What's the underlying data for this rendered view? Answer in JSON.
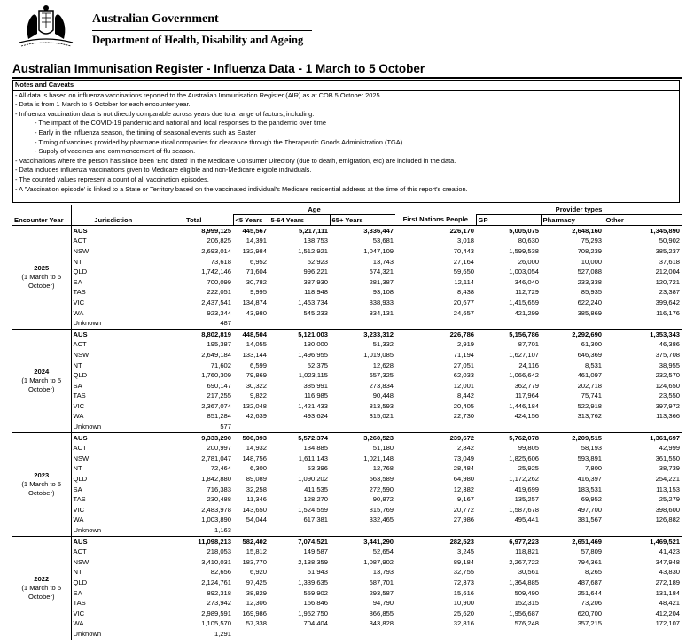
{
  "header": {
    "government": "Australian Government",
    "department": "Department of Health, Disability and Ageing"
  },
  "title": "Australian Immunisation Register - Influenza Data - 1 March to 5 October",
  "notes": {
    "heading": "Notes and Caveats",
    "items": [
      {
        "text": "- All data is based on influenza vaccinations reported to the Australian Immunisation Register (AIR) as at COB 5 October 2025.",
        "subitems": []
      },
      {
        "text": "- Data is from 1 March to 5 October for each encounter year.",
        "subitems": []
      },
      {
        "text": "- Influenza vaccination data is not directly comparable across years due to a range of factors, including:",
        "subitems": [
          "- The impact of the COVID-19 pandemic and national and local responses to the pandemic over time",
          "- Early in the influenza season, the timing of seasonal events such as Easter",
          "- Timing of vaccines provided by pharmaceutical companies for clearance through the Therapeutic Goods Administration (TGA)",
          "- Supply of vaccines and commencement of flu season."
        ]
      },
      {
        "text": "- Vaccinations where the person has since been 'End dated' in the Medicare Consumer Directory (due to death, emigration, etc) are included in the data.",
        "subitems": []
      },
      {
        "text": "- Data includes influenza vaccinations given to Medicare eligible and non-Medicare eligible individuals.",
        "subitems": []
      },
      {
        "text": "- The counted values represent a count of all vaccination episodes.",
        "subitems": []
      },
      {
        "text": "- A 'Vaccination episode' is linked to a State or Territory based on the vaccinated individual's Medicare residential address at the time of this report's creation.",
        "subitems": []
      }
    ]
  },
  "table": {
    "group_headers": {
      "age": "Age",
      "provider": "Provider types"
    },
    "columns": [
      "Encounter Year",
      "Jurisdiction",
      "Total",
      "<5 Years",
      "5-64 Years",
      "65+ Years",
      "First Nations People",
      "GP",
      "Pharmacy",
      "Other"
    ],
    "years": [
      {
        "year": "2025",
        "period": "(1 March to 5 October)",
        "rows": [
          [
            "AUS",
            "8,999,125",
            "445,567",
            "5,217,111",
            "3,336,447",
            "226,170",
            "5,005,075",
            "2,648,160",
            "1,345,890"
          ],
          [
            "ACT",
            "206,825",
            "14,391",
            "138,753",
            "53,681",
            "3,018",
            "80,630",
            "75,293",
            "50,902"
          ],
          [
            "NSW",
            "2,693,014",
            "132,984",
            "1,512,921",
            "1,047,109",
            "70,443",
            "1,599,538",
            "708,239",
            "385,237"
          ],
          [
            "NT",
            "73,618",
            "6,952",
            "52,923",
            "13,743",
            "27,164",
            "26,000",
            "10,000",
            "37,618"
          ],
          [
            "QLD",
            "1,742,146",
            "71,604",
            "996,221",
            "674,321",
            "59,650",
            "1,003,054",
            "527,088",
            "212,004"
          ],
          [
            "SA",
            "700,099",
            "30,782",
            "387,930",
            "281,387",
            "12,114",
            "346,040",
            "233,338",
            "120,721"
          ],
          [
            "TAS",
            "222,051",
            "9,995",
            "118,948",
            "93,108",
            "8,438",
            "112,729",
            "85,935",
            "23,387"
          ],
          [
            "VIC",
            "2,437,541",
            "134,874",
            "1,463,734",
            "838,933",
            "20,677",
            "1,415,659",
            "622,240",
            "399,642"
          ],
          [
            "WA",
            "923,344",
            "43,980",
            "545,233",
            "334,131",
            "24,657",
            "421,299",
            "385,869",
            "116,176"
          ],
          [
            "Unknown",
            "487"
          ]
        ]
      },
      {
        "year": "2024",
        "period": "(1 March to 5 October)",
        "rows": [
          [
            "AUS",
            "8,802,819",
            "448,504",
            "5,121,003",
            "3,233,312",
            "226,786",
            "5,156,786",
            "2,292,690",
            "1,353,343"
          ],
          [
            "ACT",
            "195,387",
            "14,055",
            "130,000",
            "51,332",
            "2,919",
            "87,701",
            "61,300",
            "46,386"
          ],
          [
            "NSW",
            "2,649,184",
            "133,144",
            "1,496,955",
            "1,019,085",
            "71,194",
            "1,627,107",
            "646,369",
            "375,708"
          ],
          [
            "NT",
            "71,602",
            "6,599",
            "52,375",
            "12,628",
            "27,051",
            "24,116",
            "8,531",
            "38,955"
          ],
          [
            "QLD",
            "1,760,309",
            "79,869",
            "1,023,115",
            "657,325",
            "62,033",
            "1,066,642",
            "461,097",
            "232,570"
          ],
          [
            "SA",
            "690,147",
            "30,322",
            "385,991",
            "273,834",
            "12,001",
            "362,779",
            "202,718",
            "124,650"
          ],
          [
            "TAS",
            "217,255",
            "9,822",
            "116,985",
            "90,448",
            "8,442",
            "117,964",
            "75,741",
            "23,550"
          ],
          [
            "VIC",
            "2,367,074",
            "132,048",
            "1,421,433",
            "813,593",
            "20,405",
            "1,446,184",
            "522,918",
            "397,972"
          ],
          [
            "WA",
            "851,284",
            "42,639",
            "493,624",
            "315,021",
            "22,730",
            "424,156",
            "313,762",
            "113,366"
          ],
          [
            "Unknown",
            "577"
          ]
        ]
      },
      {
        "year": "2023",
        "period": "(1 March to 5 October)",
        "rows": [
          [
            "AUS",
            "9,333,290",
            "500,393",
            "5,572,374",
            "3,260,523",
            "239,672",
            "5,762,078",
            "2,209,515",
            "1,361,697"
          ],
          [
            "ACT",
            "200,997",
            "14,932",
            "134,885",
            "51,180",
            "2,842",
            "99,805",
            "58,193",
            "42,999"
          ],
          [
            "NSW",
            "2,781,047",
            "148,756",
            "1,611,143",
            "1,021,148",
            "73,049",
            "1,825,606",
            "593,891",
            "361,550"
          ],
          [
            "NT",
            "72,464",
            "6,300",
            "53,396",
            "12,768",
            "28,484",
            "25,925",
            "7,800",
            "38,739"
          ],
          [
            "QLD",
            "1,842,880",
            "89,089",
            "1,090,202",
            "663,589",
            "64,980",
            "1,172,262",
            "416,397",
            "254,221"
          ],
          [
            "SA",
            "716,383",
            "32,258",
            "411,535",
            "272,590",
            "12,382",
            "419,699",
            "183,531",
            "113,153"
          ],
          [
            "TAS",
            "230,488",
            "11,346",
            "128,270",
            "90,872",
            "9,167",
            "135,257",
            "69,952",
            "25,279"
          ],
          [
            "VIC",
            "2,483,978",
            "143,650",
            "1,524,559",
            "815,769",
            "20,772",
            "1,587,678",
            "497,700",
            "398,600"
          ],
          [
            "WA",
            "1,003,890",
            "54,044",
            "617,381",
            "332,465",
            "27,986",
            "495,441",
            "381,567",
            "126,882"
          ],
          [
            "Unknown",
            "1,163"
          ]
        ]
      },
      {
        "year": "2022",
        "period": "(1 March to 5 October)",
        "rows": [
          [
            "AUS",
            "11,098,213",
            "582,402",
            "7,074,521",
            "3,441,290",
            "282,523",
            "6,977,223",
            "2,651,469",
            "1,469,521"
          ],
          [
            "ACT",
            "218,053",
            "15,812",
            "149,587",
            "52,654",
            "3,245",
            "118,821",
            "57,809",
            "41,423"
          ],
          [
            "NSW",
            "3,410,031",
            "183,770",
            "2,138,359",
            "1,087,902",
            "89,184",
            "2,267,722",
            "794,361",
            "347,948"
          ],
          [
            "NT",
            "82,656",
            "6,920",
            "61,943",
            "13,793",
            "32,755",
            "30,561",
            "8,265",
            "43,830"
          ],
          [
            "QLD",
            "2,124,761",
            "97,425",
            "1,339,635",
            "687,701",
            "72,373",
            "1,364,885",
            "487,687",
            "272,189"
          ],
          [
            "SA",
            "892,318",
            "38,829",
            "559,902",
            "293,587",
            "15,616",
            "509,490",
            "251,644",
            "131,184"
          ],
          [
            "TAS",
            "273,942",
            "12,306",
            "166,846",
            "94,790",
            "10,900",
            "152,315",
            "73,206",
            "48,421"
          ],
          [
            "VIC",
            "2,989,591",
            "169,986",
            "1,952,750",
            "866,855",
            "25,620",
            "1,956,687",
            "620,700",
            "412,204"
          ],
          [
            "WA",
            "1,105,570",
            "57,338",
            "704,404",
            "343,828",
            "32,816",
            "576,248",
            "357,215",
            "172,107"
          ],
          [
            "Unknown",
            "1,291"
          ]
        ]
      }
    ]
  }
}
